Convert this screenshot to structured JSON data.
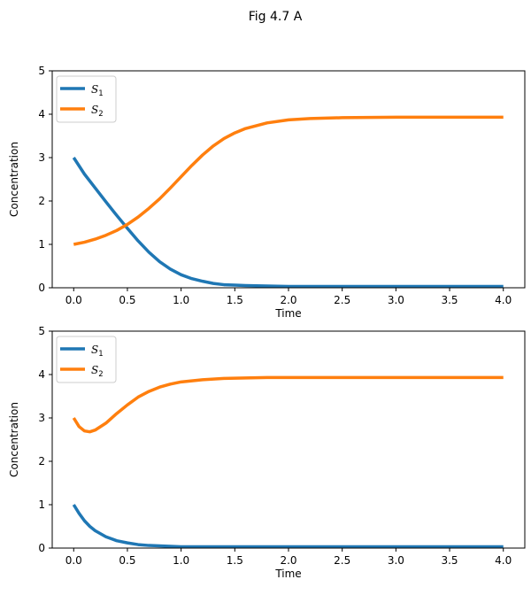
{
  "figure_title": "Fig 4.7 A",
  "colors": {
    "s1": "#1f77b4",
    "s2": "#ff7f0e"
  },
  "chart_data": [
    {
      "type": "line",
      "title": "",
      "xlabel": "Time",
      "ylabel": "Concentration",
      "xlim": [
        -0.2,
        4.2
      ],
      "ylim": [
        0,
        5
      ],
      "xticks": [
        "0.0",
        "0.5",
        "1.0",
        "1.5",
        "2.0",
        "2.5",
        "3.0",
        "3.5",
        "4.0"
      ],
      "yticks": [
        "0",
        "1",
        "2",
        "3",
        "4",
        "5"
      ],
      "legend_position": "top-left",
      "x": [
        0.0,
        0.1,
        0.2,
        0.3,
        0.4,
        0.5,
        0.6,
        0.7,
        0.8,
        0.9,
        1.0,
        1.1,
        1.2,
        1.3,
        1.4,
        1.5,
        1.6,
        1.8,
        2.0,
        2.2,
        2.5,
        3.0,
        3.5,
        4.0
      ],
      "series": [
        {
          "name": "S",
          "sub": "1",
          "color_key": "s1",
          "values": [
            3.0,
            2.62,
            2.3,
            1.98,
            1.67,
            1.37,
            1.08,
            0.82,
            0.6,
            0.43,
            0.3,
            0.21,
            0.15,
            0.1,
            0.07,
            0.06,
            0.05,
            0.04,
            0.03,
            0.03,
            0.03,
            0.03,
            0.03,
            0.03
          ]
        },
        {
          "name": "S",
          "sub": "2",
          "color_key": "s2",
          "values": [
            1.0,
            1.05,
            1.12,
            1.21,
            1.32,
            1.46,
            1.63,
            1.83,
            2.05,
            2.3,
            2.56,
            2.82,
            3.06,
            3.27,
            3.44,
            3.57,
            3.67,
            3.8,
            3.87,
            3.9,
            3.92,
            3.93,
            3.93,
            3.93
          ]
        }
      ]
    },
    {
      "type": "line",
      "title": "",
      "xlabel": "Time",
      "ylabel": "Concentration",
      "xlim": [
        -0.2,
        4.2
      ],
      "ylim": [
        0,
        5
      ],
      "xticks": [
        "0.0",
        "0.5",
        "1.0",
        "1.5",
        "2.0",
        "2.5",
        "3.0",
        "3.5",
        "4.0"
      ],
      "yticks": [
        "0",
        "1",
        "2",
        "3",
        "4",
        "5"
      ],
      "legend_position": "top-left",
      "x": [
        0.0,
        0.05,
        0.1,
        0.15,
        0.2,
        0.3,
        0.4,
        0.5,
        0.6,
        0.7,
        0.8,
        0.9,
        1.0,
        1.2,
        1.4,
        1.6,
        1.8,
        2.0,
        2.5,
        3.0,
        3.5,
        4.0
      ],
      "series": [
        {
          "name": "S",
          "sub": "1",
          "color_key": "s1",
          "values": [
            1.0,
            0.8,
            0.63,
            0.5,
            0.4,
            0.26,
            0.17,
            0.12,
            0.08,
            0.06,
            0.05,
            0.04,
            0.03,
            0.03,
            0.03,
            0.03,
            0.03,
            0.03,
            0.03,
            0.03,
            0.03,
            0.03
          ]
        },
        {
          "name": "S",
          "sub": "2",
          "color_key": "s2",
          "values": [
            3.0,
            2.8,
            2.7,
            2.68,
            2.72,
            2.88,
            3.1,
            3.3,
            3.48,
            3.61,
            3.71,
            3.78,
            3.83,
            3.88,
            3.91,
            3.92,
            3.93,
            3.93,
            3.93,
            3.93,
            3.93,
            3.93
          ]
        }
      ]
    }
  ]
}
